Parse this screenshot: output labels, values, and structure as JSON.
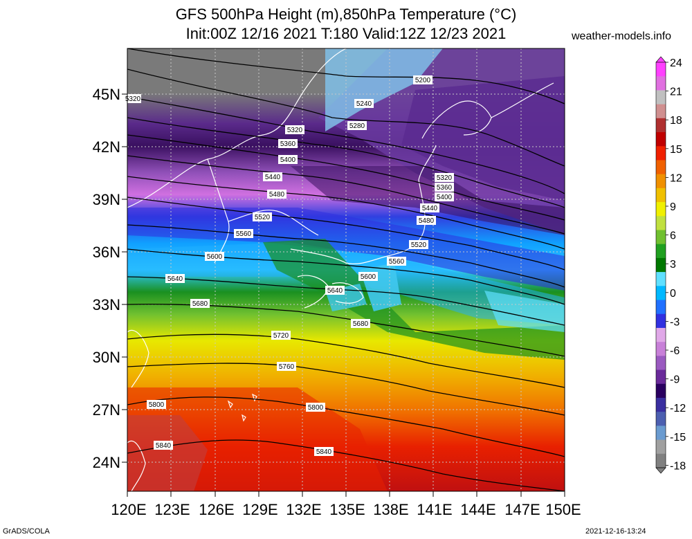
{
  "header": {
    "title_line1": "GFS 500hPa Height (m),850hPa Temperature (°C)",
    "title_line2": "Init:00Z 12/16 2021 T:180 Valid:12Z 12/23 2021",
    "site": "weather-models.info"
  },
  "footer": {
    "left": "GrADS/COLA",
    "right": "2021-12-16-13:24"
  },
  "map": {
    "lat_labels": [
      "45N",
      "42N",
      "39N",
      "36N",
      "33N",
      "30N",
      "27N",
      "24N"
    ],
    "lon_labels": [
      "120E",
      "123E",
      "126E",
      "129E",
      "132E",
      "135E",
      "138E",
      "141E",
      "144E",
      "147E",
      "150E"
    ],
    "contour_labels": [
      "5200",
      "5240",
      "5280",
      "5320",
      "5360",
      "5400",
      "5440",
      "5480",
      "5520",
      "5560",
      "5600",
      "5640",
      "5680",
      "5720",
      "5760",
      "5800",
      "5840",
      "5320",
      "5360",
      "5400",
      "5440",
      "5480",
      "5520",
      "5560",
      "5600",
      "5640",
      "5680",
      "5800",
      "5840",
      "5320"
    ]
  },
  "colorbar": {
    "labels": [
      "24",
      "21",
      "18",
      "15",
      "12",
      "9",
      "6",
      "3",
      "0",
      "-3",
      "-6",
      "-9",
      "-12",
      "-15",
      "-18"
    ],
    "colors": [
      "#808080",
      "#a0a0a0",
      "#6a9bd0",
      "#4c5fb0",
      "#3a2fa0",
      "#2a0060",
      "#6a2a9a",
      "#9a5ac0",
      "#c880d8",
      "#e0a8e8",
      "#3030e0",
      "#2070ff",
      "#00b8ff",
      "#60e0ff",
      "#007800",
      "#20a020",
      "#70c030",
      "#c0e040",
      "#f0f000",
      "#f0c000",
      "#f09000",
      "#f06000",
      "#f02000",
      "#c00000",
      "#b03030",
      "#d09090",
      "#c0c0c0",
      "#e070e0",
      "#ff40ff"
    ]
  },
  "colors": {
    "land": "#ffffff",
    "contour": "#000000",
    "grid": "#c8c8c8"
  }
}
